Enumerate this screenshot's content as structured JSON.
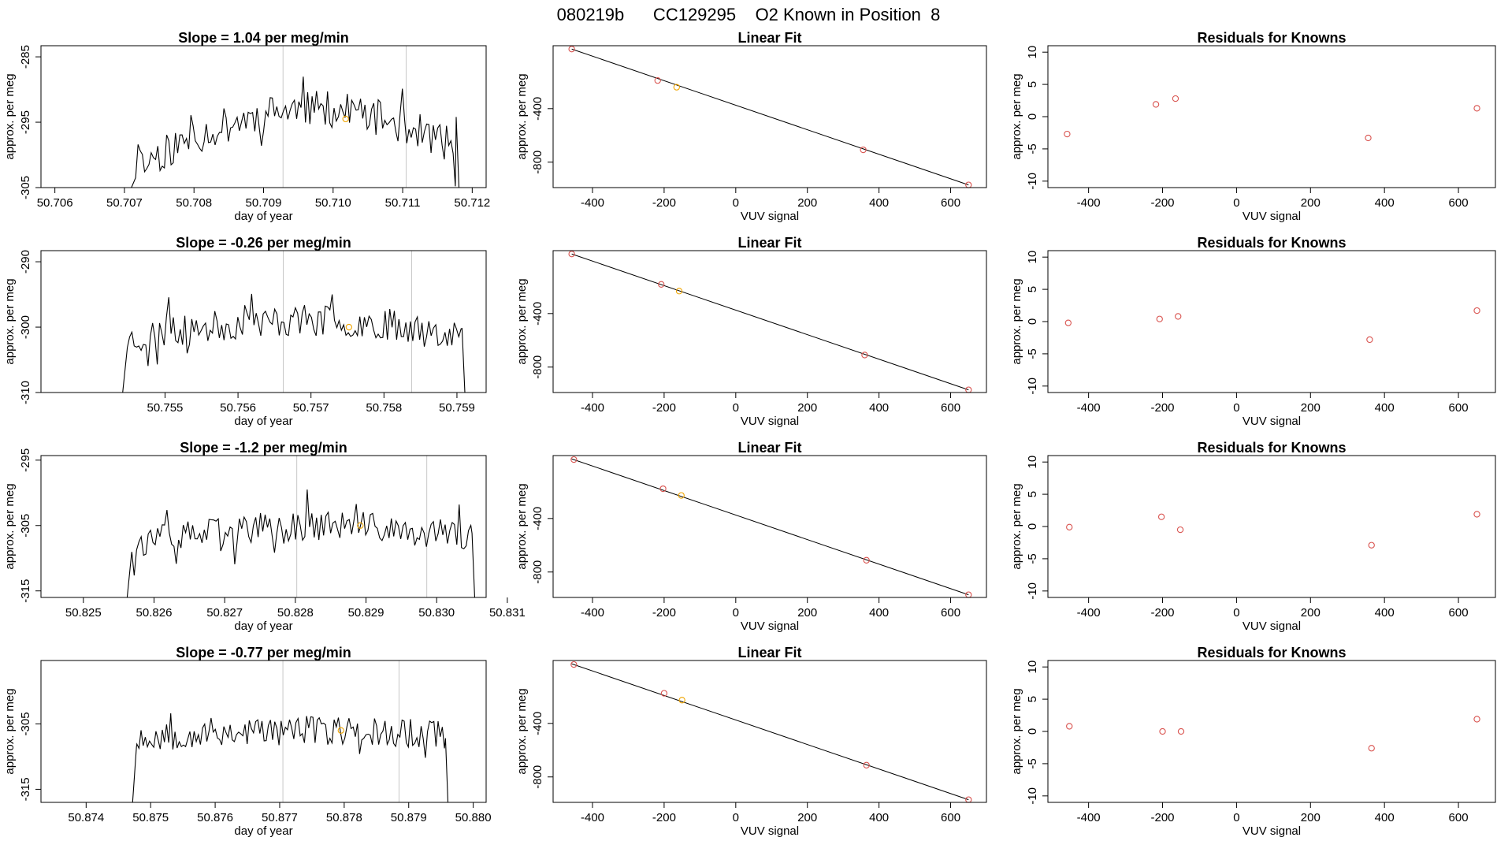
{
  "page_title": "080219b      CC129295    O2 Known in Position  8",
  "colors": {
    "known": "#d9534f",
    "unknown": "#f0a500",
    "line": "#000000",
    "window": "#c8c8c8"
  },
  "chart_data": [
    {
      "type": "line",
      "title": "Slope =  1.04  per meg/min",
      "xlabel": "day of year",
      "ylabel": "approx. per meg",
      "xlim": [
        50.7058,
        50.7122
      ],
      "ylim": [
        -305,
        -283.3
      ],
      "xticks": [
        50.706,
        50.707,
        50.708,
        50.709,
        50.71,
        50.711,
        50.712
      ],
      "xtick_labels": [
        "50.706",
        "50.707",
        "50.708",
        "50.709",
        "50.710",
        "50.711",
        "50.712"
      ],
      "yticks": [
        -285,
        -295,
        -305
      ],
      "ytick_labels": [
        "-285",
        "-295",
        "-305"
      ],
      "window_lines": [
        50.70928,
        50.71105
      ],
      "trace": {
        "x_start": 50.7071,
        "x_end": 50.71182,
        "baseline": -305,
        "level_start": -302,
        "level_end": -293,
        "amplitude": 2.8,
        "seed": 11
      },
      "marker": {
        "x": 50.71018,
        "y": -294.5
      }
    },
    {
      "type": "line",
      "title": "Linear Fit",
      "xlabel": "VUV signal",
      "ylabel": "approx. per meg",
      "xlim": [
        -510,
        700
      ],
      "ylim": [
        -990,
        70
      ],
      "xticks": [
        -400,
        -200,
        0,
        200,
        400,
        600
      ],
      "xtick_labels": [
        "-400",
        "-200",
        "0",
        "200",
        "400",
        "600"
      ],
      "yticks": [
        -400,
        -800
      ],
      "ytick_labels": [
        "-400",
        "-800"
      ],
      "fit_line": [
        [
          -458,
          45
        ],
        [
          650,
          -970
        ]
      ],
      "known_points": [
        {
          "x": -458,
          "y": 45
        },
        {
          "x": -218,
          "y": -190
        },
        {
          "x": 356,
          "y": -708
        },
        {
          "x": 650,
          "y": -970
        }
      ],
      "unknown_points": [
        {
          "x": -165,
          "y": -240
        }
      ]
    },
    {
      "type": "scatter",
      "title": "Residuals for Knowns",
      "xlabel": "VUV signal",
      "ylabel": "approx. per meg",
      "xlim": [
        -510,
        700
      ],
      "ylim": [
        -11,
        11
      ],
      "xticks": [
        -400,
        -200,
        0,
        200,
        400,
        600
      ],
      "xtick_labels": [
        "-400",
        "-200",
        "0",
        "200",
        "400",
        "600"
      ],
      "yticks": [
        10,
        5,
        0,
        -5,
        -10
      ],
      "ytick_labels": [
        "10",
        "5",
        "0",
        "-5",
        "-10"
      ],
      "known_points": [
        {
          "x": -458,
          "y": -2.7
        },
        {
          "x": -218,
          "y": 1.9
        },
        {
          "x": -165,
          "y": 2.8
        },
        {
          "x": 356,
          "y": -3.3
        },
        {
          "x": 650,
          "y": 1.3
        }
      ]
    },
    {
      "type": "line",
      "title": "Slope =  -0.26  per meg/min",
      "xlabel": "day of year",
      "ylabel": "approx. per meg",
      "xlim": [
        50.7533,
        50.7594
      ],
      "ylim": [
        -310,
        -288.3
      ],
      "xticks": [
        50.755,
        50.756,
        50.757,
        50.758,
        50.759
      ],
      "xtick_labels": [
        "50.755",
        "50.756",
        "50.757",
        "50.758",
        "50.759"
      ],
      "yticks": [
        -290,
        -300,
        -310
      ],
      "ytick_labels": [
        "-290",
        "-300",
        "-310"
      ],
      "window_lines": [
        50.75662,
        50.75838
      ],
      "trace": {
        "x_start": 50.75442,
        "x_end": 50.75912,
        "baseline": -310,
        "level_start": -302,
        "level_end": -299,
        "amplitude": 2.4,
        "seed": 23
      },
      "marker": {
        "x": 50.75752,
        "y": -300
      }
    },
    {
      "type": "line",
      "title": "Linear Fit",
      "xlabel": "VUV signal",
      "ylabel": "approx. per meg",
      "xlim": [
        -510,
        700
      ],
      "ylim": [
        -990,
        70
      ],
      "xticks": [
        -400,
        -200,
        0,
        200,
        400,
        600
      ],
      "xtick_labels": [
        "-400",
        "-200",
        "0",
        "200",
        "400",
        "600"
      ],
      "yticks": [
        -400,
        -800
      ],
      "ytick_labels": [
        "-400",
        "-800"
      ],
      "fit_line": [
        [
          -458,
          45
        ],
        [
          650,
          -970
        ]
      ],
      "known_points": [
        {
          "x": -458,
          "y": 45
        },
        {
          "x": -208,
          "y": -182
        },
        {
          "x": 360,
          "y": -710
        },
        {
          "x": 650,
          "y": -970
        }
      ],
      "unknown_points": [
        {
          "x": -158,
          "y": -232
        }
      ]
    },
    {
      "type": "scatter",
      "title": "Residuals for Knowns",
      "xlabel": "VUV signal",
      "ylabel": "approx. per meg",
      "xlim": [
        -510,
        700
      ],
      "ylim": [
        -11,
        11
      ],
      "xticks": [
        -400,
        -200,
        0,
        200,
        400,
        600
      ],
      "xtick_labels": [
        "-400",
        "-200",
        "0",
        "200",
        "400",
        "600"
      ],
      "yticks": [
        10,
        5,
        0,
        -5,
        -10
      ],
      "ytick_labels": [
        "10",
        "5",
        "0",
        "-5",
        "-10"
      ],
      "known_points": [
        {
          "x": -455,
          "y": -0.2
        },
        {
          "x": -208,
          "y": 0.4
        },
        {
          "x": -158,
          "y": 0.8
        },
        {
          "x": 360,
          "y": -2.8
        },
        {
          "x": 650,
          "y": 1.7
        }
      ]
    },
    {
      "type": "line",
      "title": "Slope =  -1.2  per meg/min",
      "xlabel": "day of year",
      "ylabel": "approx. per meg",
      "xlim": [
        50.8244,
        50.8307
      ],
      "ylim": [
        -316,
        -294.3
      ],
      "xticks": [
        50.825,
        50.826,
        50.827,
        50.828,
        50.829,
        50.83,
        50.831
      ],
      "xtick_labels": [
        "50.825",
        "50.826",
        "50.827",
        "50.828",
        "50.829",
        "50.830",
        "50.831"
      ],
      "yticks": [
        -295,
        -305,
        -315
      ],
      "ytick_labels": [
        "-295",
        "-305",
        "-315"
      ],
      "window_lines": [
        50.82802,
        50.82986
      ],
      "trace": {
        "x_start": 50.82562,
        "x_end": 50.83055,
        "baseline": -316,
        "level_start": -308,
        "level_end": -305,
        "amplitude": 2.3,
        "seed": 37
      },
      "marker": {
        "x": 50.82892,
        "y": -305
      }
    },
    {
      "type": "line",
      "title": "Linear Fit",
      "xlabel": "VUV signal",
      "ylabel": "approx. per meg",
      "xlim": [
        -510,
        700
      ],
      "ylim": [
        -990,
        70
      ],
      "xticks": [
        -400,
        -200,
        0,
        200,
        400,
        600
      ],
      "xtick_labels": [
        "-400",
        "-200",
        "0",
        "200",
        "400",
        "600"
      ],
      "yticks": [
        -400,
        -800
      ],
      "ytick_labels": [
        "-400",
        "-800"
      ],
      "fit_line": [
        [
          -458,
          45
        ],
        [
          650,
          -970
        ]
      ],
      "known_points": [
        {
          "x": -452,
          "y": 40
        },
        {
          "x": -203,
          "y": -178
        },
        {
          "x": 365,
          "y": -712
        },
        {
          "x": 650,
          "y": -970
        }
      ],
      "unknown_points": [
        {
          "x": -152,
          "y": -228
        }
      ]
    },
    {
      "type": "scatter",
      "title": "Residuals for Knowns",
      "xlabel": "VUV signal",
      "ylabel": "approx. per meg",
      "xlim": [
        -510,
        700
      ],
      "ylim": [
        -11,
        11
      ],
      "xticks": [
        -400,
        -200,
        0,
        200,
        400,
        600
      ],
      "xtick_labels": [
        "-400",
        "-200",
        "0",
        "200",
        "400",
        "600"
      ],
      "yticks": [
        10,
        5,
        0,
        -5,
        -10
      ],
      "ytick_labels": [
        "10",
        "5",
        "0",
        "-5",
        "-10"
      ],
      "known_points": [
        {
          "x": -452,
          "y": -0.1
        },
        {
          "x": -203,
          "y": 1.5
        },
        {
          "x": -152,
          "y": -0.5
        },
        {
          "x": 365,
          "y": -2.9
        },
        {
          "x": 650,
          "y": 1.9
        }
      ]
    },
    {
      "type": "line",
      "title": "Slope =  -0.77  per meg/min",
      "xlabel": "day of year",
      "ylabel": "approx. per meg",
      "xlim": [
        50.8733,
        50.8802
      ],
      "ylim": [
        -317,
        -295.3
      ],
      "xticks": [
        50.874,
        50.875,
        50.876,
        50.877,
        50.878,
        50.879,
        50.88
      ],
      "xtick_labels": [
        "50.874",
        "50.875",
        "50.876",
        "50.877",
        "50.878",
        "50.879",
        "50.880"
      ],
      "yticks": [
        -305,
        -315
      ],
      "ytick_labels": [
        "-305",
        "-315"
      ],
      "window_lines": [
        50.87705,
        50.87885
      ],
      "trace": {
        "x_start": 50.87472,
        "x_end": 50.87962,
        "baseline": -317,
        "level_start": -307,
        "level_end": -306,
        "amplitude": 2.3,
        "seed": 53
      },
      "marker": {
        "x": 50.87795,
        "y": -306
      }
    },
    {
      "type": "line",
      "title": "Linear Fit",
      "xlabel": "VUV signal",
      "ylabel": "approx. per meg",
      "xlim": [
        -510,
        700
      ],
      "ylim": [
        -990,
        70
      ],
      "xticks": [
        -400,
        -200,
        0,
        200,
        400,
        600
      ],
      "xtick_labels": [
        "-400",
        "-200",
        "0",
        "200",
        "400",
        "600"
      ],
      "yticks": [
        -400,
        -800
      ],
      "ytick_labels": [
        "-400",
        "-800"
      ],
      "fit_line": [
        [
          -458,
          45
        ],
        [
          650,
          -970
        ]
      ],
      "known_points": [
        {
          "x": -452,
          "y": 40
        },
        {
          "x": -200,
          "y": -175
        },
        {
          "x": 365,
          "y": -712
        },
        {
          "x": 650,
          "y": -970
        }
      ],
      "unknown_points": [
        {
          "x": -150,
          "y": -226
        }
      ]
    },
    {
      "type": "scatter",
      "title": "Residuals for Knowns",
      "xlabel": "VUV signal",
      "ylabel": "approx. per meg",
      "xlim": [
        -510,
        700
      ],
      "ylim": [
        -11,
        11
      ],
      "xticks": [
        -400,
        -200,
        0,
        200,
        400,
        600
      ],
      "xtick_labels": [
        "-400",
        "-200",
        "0",
        "200",
        "400",
        "600"
      ],
      "yticks": [
        10,
        5,
        0,
        -5,
        -10
      ],
      "ytick_labels": [
        "10",
        "5",
        "0",
        "-5",
        "-10"
      ],
      "known_points": [
        {
          "x": -452,
          "y": 0.8
        },
        {
          "x": -200,
          "y": 0
        },
        {
          "x": -150,
          "y": 0
        },
        {
          "x": 365,
          "y": -2.6
        },
        {
          "x": 650,
          "y": 1.9
        }
      ]
    }
  ]
}
